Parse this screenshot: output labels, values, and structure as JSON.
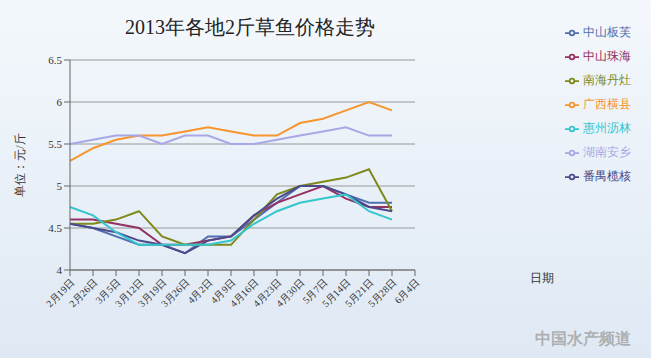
{
  "chart_data": {
    "type": "line",
    "title": "2013年各地2斤草鱼价格走势",
    "y_label": "单位：元/斤",
    "x_label": "日期",
    "watermark": "中国水产频道",
    "categories": [
      "2月19日",
      "2月26日",
      "3月5日",
      "3月12日",
      "3月19日",
      "3月26日",
      "4月2日",
      "4月9日",
      "4月16日",
      "4月23日",
      "4月30日",
      "5月7日",
      "5月14日",
      "5月21日",
      "5月28日",
      "6月4日"
    ],
    "series": [
      {
        "name": "中山板芙",
        "color": "#4f6fb0",
        "values": [
          4.55,
          4.5,
          4.4,
          4.3,
          4.3,
          4.2,
          4.4,
          4.4,
          4.6,
          4.8,
          5.0,
          5.0,
          4.9,
          4.8,
          4.8,
          null
        ]
      },
      {
        "name": "中山珠海",
        "color": "#953063",
        "values": [
          4.6,
          4.6,
          4.55,
          4.5,
          4.3,
          4.3,
          4.35,
          4.4,
          4.65,
          4.8,
          4.9,
          5.0,
          4.85,
          4.75,
          4.75,
          null
        ]
      },
      {
        "name": "南海丹灶",
        "color": "#7f8a1a",
        "values": [
          4.55,
          4.55,
          4.6,
          4.7,
          4.4,
          4.3,
          4.3,
          4.3,
          4.6,
          4.9,
          5.0,
          5.05,
          5.1,
          5.2,
          4.7,
          null
        ]
      },
      {
        "name": "番禺榄核",
        "color": "#4b4b8c",
        "values": [
          4.55,
          4.5,
          4.45,
          4.35,
          4.3,
          4.2,
          4.35,
          4.4,
          4.65,
          4.85,
          5.0,
          5.0,
          4.9,
          4.75,
          4.7,
          null
        ]
      },
      {
        "name": "惠州沥林",
        "color": "#33c6cc",
        "values": [
          4.75,
          4.65,
          4.45,
          4.3,
          4.3,
          4.3,
          4.3,
          4.35,
          4.55,
          4.7,
          4.8,
          4.85,
          4.9,
          4.7,
          4.6,
          null
        ]
      },
      {
        "name": "广西横县",
        "color": "#f7962e",
        "values": [
          5.3,
          5.45,
          5.55,
          5.6,
          5.6,
          5.65,
          5.7,
          5.65,
          5.6,
          5.6,
          5.75,
          5.8,
          5.9,
          6.0,
          5.9,
          null
        ]
      },
      {
        "name": "湖南安乡",
        "color": "#a8a8e6",
        "values": [
          5.5,
          5.55,
          5.6,
          5.6,
          5.5,
          5.6,
          5.6,
          5.5,
          5.5,
          5.55,
          5.6,
          5.65,
          5.7,
          5.6,
          5.6,
          null
        ]
      }
    ],
    "ylim": [
      4,
      6.5
    ],
    "yticks": [
      4,
      4.5,
      5,
      5.5,
      6,
      6.5
    ],
    "grid": true,
    "legend": "right"
  }
}
